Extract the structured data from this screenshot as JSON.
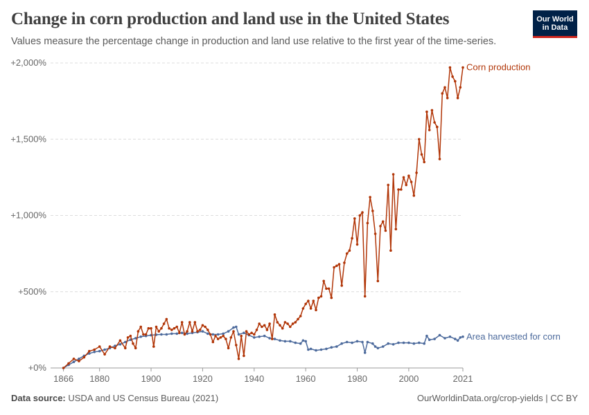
{
  "header": {
    "title": "Change in corn production and land use in the United States",
    "subtitle": "Values measure the percentage change in production and land use relative to the first year of the time-series.",
    "logo_line1": "Our World",
    "logo_line2": "in Data"
  },
  "footer": {
    "source_label": "Data source:",
    "source_text": "USDA and US Census Bureau (2021)",
    "url": "OurWorldinData.org/crop-yields | CC BY"
  },
  "chart_data": {
    "type": "line",
    "title": "Change in corn production and land use in the United States",
    "xlabel": "",
    "ylabel": "",
    "xlim": [
      1861,
      2021
    ],
    "ylim": [
      0,
      2000
    ],
    "y_ticks": [
      {
        "value": 0,
        "label": "+0%"
      },
      {
        "value": 500,
        "label": "+500%"
      },
      {
        "value": 1000,
        "label": "+1,000%"
      },
      {
        "value": 1500,
        "label": "+1,500%"
      },
      {
        "value": 2000,
        "label": "+2,000%"
      }
    ],
    "x_ticks": [
      {
        "value": 1866,
        "label": "1866"
      },
      {
        "value": 1880,
        "label": "1880"
      },
      {
        "value": 1900,
        "label": "1900"
      },
      {
        "value": 1920,
        "label": "1920"
      },
      {
        "value": 1940,
        "label": "1940"
      },
      {
        "value": 1960,
        "label": "1960"
      },
      {
        "value": 1980,
        "label": "1980"
      },
      {
        "value": 2000,
        "label": "2000"
      },
      {
        "value": 2021,
        "label": "2021"
      }
    ],
    "grid": "horizontal dashed",
    "legend": "inline labels at line ends (right)",
    "colors": {
      "production": "#b13507",
      "area": "#4c6a9c"
    },
    "series": [
      {
        "name": "Corn production",
        "color": "#b13507",
        "points": [
          [
            1866,
            0
          ],
          [
            1868,
            30
          ],
          [
            1870,
            60
          ],
          [
            1872,
            45
          ],
          [
            1874,
            70
          ],
          [
            1876,
            110
          ],
          [
            1878,
            120
          ],
          [
            1880,
            140
          ],
          [
            1882,
            90
          ],
          [
            1884,
            140
          ],
          [
            1886,
            130
          ],
          [
            1888,
            180
          ],
          [
            1890,
            130
          ],
          [
            1891,
            200
          ],
          [
            1892,
            210
          ],
          [
            1893,
            160
          ],
          [
            1894,
            130
          ],
          [
            1895,
            240
          ],
          [
            1896,
            270
          ],
          [
            1897,
            220
          ],
          [
            1898,
            220
          ],
          [
            1899,
            260
          ],
          [
            1900,
            260
          ],
          [
            1901,
            140
          ],
          [
            1902,
            270
          ],
          [
            1903,
            240
          ],
          [
            1904,
            260
          ],
          [
            1905,
            290
          ],
          [
            1906,
            320
          ],
          [
            1907,
            260
          ],
          [
            1908,
            250
          ],
          [
            1909,
            260
          ],
          [
            1910,
            270
          ],
          [
            1911,
            230
          ],
          [
            1912,
            300
          ],
          [
            1913,
            220
          ],
          [
            1914,
            240
          ],
          [
            1915,
            300
          ],
          [
            1916,
            240
          ],
          [
            1917,
            300
          ],
          [
            1918,
            240
          ],
          [
            1919,
            250
          ],
          [
            1920,
            280
          ],
          [
            1921,
            270
          ],
          [
            1922,
            250
          ],
          [
            1923,
            220
          ],
          [
            1924,
            170
          ],
          [
            1925,
            210
          ],
          [
            1926,
            190
          ],
          [
            1927,
            200
          ],
          [
            1928,
            210
          ],
          [
            1929,
            190
          ],
          [
            1930,
            130
          ],
          [
            1931,
            200
          ],
          [
            1932,
            240
          ],
          [
            1933,
            150
          ],
          [
            1934,
            60
          ],
          [
            1935,
            210
          ],
          [
            1936,
            80
          ],
          [
            1937,
            240
          ],
          [
            1938,
            220
          ],
          [
            1939,
            230
          ],
          [
            1940,
            220
          ],
          [
            1941,
            250
          ],
          [
            1942,
            290
          ],
          [
            1943,
            270
          ],
          [
            1944,
            280
          ],
          [
            1945,
            250
          ],
          [
            1946,
            290
          ],
          [
            1947,
            190
          ],
          [
            1948,
            350
          ],
          [
            1949,
            300
          ],
          [
            1950,
            280
          ],
          [
            1951,
            260
          ],
          [
            1952,
            300
          ],
          [
            1953,
            290
          ],
          [
            1954,
            270
          ],
          [
            1955,
            290
          ],
          [
            1956,
            300
          ],
          [
            1957,
            320
          ],
          [
            1958,
            340
          ],
          [
            1959,
            390
          ],
          [
            1960,
            420
          ],
          [
            1961,
            440
          ],
          [
            1962,
            390
          ],
          [
            1963,
            440
          ],
          [
            1964,
            380
          ],
          [
            1965,
            460
          ],
          [
            1966,
            470
          ],
          [
            1967,
            570
          ],
          [
            1968,
            520
          ],
          [
            1969,
            520
          ],
          [
            1970,
            460
          ],
          [
            1971,
            660
          ],
          [
            1972,
            670
          ],
          [
            1973,
            680
          ],
          [
            1974,
            540
          ],
          [
            1975,
            690
          ],
          [
            1976,
            750
          ],
          [
            1977,
            770
          ],
          [
            1978,
            850
          ],
          [
            1979,
            980
          ],
          [
            1980,
            810
          ],
          [
            1981,
            1000
          ],
          [
            1982,
            1020
          ],
          [
            1983,
            470
          ],
          [
            1984,
            950
          ],
          [
            1985,
            1120
          ],
          [
            1986,
            1030
          ],
          [
            1987,
            880
          ],
          [
            1988,
            570
          ],
          [
            1989,
            930
          ],
          [
            1990,
            960
          ],
          [
            1991,
            900
          ],
          [
            1992,
            1200
          ],
          [
            1993,
            770
          ],
          [
            1994,
            1270
          ],
          [
            1995,
            910
          ],
          [
            1996,
            1170
          ],
          [
            1997,
            1170
          ],
          [
            1998,
            1250
          ],
          [
            1999,
            1200
          ],
          [
            2000,
            1260
          ],
          [
            2001,
            1220
          ],
          [
            2002,
            1130
          ],
          [
            2003,
            1280
          ],
          [
            2004,
            1500
          ],
          [
            2005,
            1400
          ],
          [
            2006,
            1350
          ],
          [
            2007,
            1680
          ],
          [
            2008,
            1560
          ],
          [
            2009,
            1690
          ],
          [
            2010,
            1610
          ],
          [
            2011,
            1580
          ],
          [
            2012,
            1370
          ],
          [
            2013,
            1800
          ],
          [
            2014,
            1840
          ],
          [
            2015,
            1770
          ],
          [
            2016,
            1970
          ],
          [
            2017,
            1910
          ],
          [
            2018,
            1880
          ],
          [
            2019,
            1770
          ],
          [
            2020,
            1840
          ],
          [
            2021,
            1970
          ]
        ]
      },
      {
        "name": "Area harvested for corn",
        "color": "#4c6a9c",
        "points": [
          [
            1866,
            0
          ],
          [
            1868,
            20
          ],
          [
            1870,
            40
          ],
          [
            1872,
            60
          ],
          [
            1874,
            80
          ],
          [
            1876,
            95
          ],
          [
            1878,
            105
          ],
          [
            1880,
            110
          ],
          [
            1882,
            120
          ],
          [
            1884,
            130
          ],
          [
            1886,
            145
          ],
          [
            1888,
            155
          ],
          [
            1890,
            170
          ],
          [
            1892,
            185
          ],
          [
            1894,
            195
          ],
          [
            1896,
            205
          ],
          [
            1898,
            210
          ],
          [
            1900,
            215
          ],
          [
            1902,
            218
          ],
          [
            1904,
            220
          ],
          [
            1906,
            220
          ],
          [
            1908,
            225
          ],
          [
            1910,
            225
          ],
          [
            1912,
            230
          ],
          [
            1914,
            225
          ],
          [
            1916,
            230
          ],
          [
            1918,
            235
          ],
          [
            1920,
            240
          ],
          [
            1922,
            225
          ],
          [
            1924,
            220
          ],
          [
            1926,
            220
          ],
          [
            1928,
            225
          ],
          [
            1930,
            240
          ],
          [
            1932,
            265
          ],
          [
            1933,
            270
          ],
          [
            1934,
            220
          ],
          [
            1936,
            230
          ],
          [
            1938,
            215
          ],
          [
            1940,
            200
          ],
          [
            1942,
            205
          ],
          [
            1944,
            210
          ],
          [
            1946,
            195
          ],
          [
            1948,
            190
          ],
          [
            1950,
            180
          ],
          [
            1952,
            175
          ],
          [
            1954,
            175
          ],
          [
            1956,
            165
          ],
          [
            1958,
            160
          ],
          [
            1959,
            180
          ],
          [
            1960,
            175
          ],
          [
            1961,
            120
          ],
          [
            1962,
            125
          ],
          [
            1964,
            115
          ],
          [
            1966,
            120
          ],
          [
            1968,
            125
          ],
          [
            1970,
            135
          ],
          [
            1972,
            140
          ],
          [
            1974,
            160
          ],
          [
            1976,
            170
          ],
          [
            1978,
            165
          ],
          [
            1980,
            175
          ],
          [
            1982,
            170
          ],
          [
            1983,
            100
          ],
          [
            1984,
            170
          ],
          [
            1986,
            160
          ],
          [
            1987,
            140
          ],
          [
            1988,
            130
          ],
          [
            1990,
            140
          ],
          [
            1992,
            160
          ],
          [
            1994,
            155
          ],
          [
            1996,
            165
          ],
          [
            1998,
            165
          ],
          [
            2000,
            165
          ],
          [
            2002,
            160
          ],
          [
            2004,
            165
          ],
          [
            2006,
            160
          ],
          [
            2007,
            210
          ],
          [
            2008,
            185
          ],
          [
            2010,
            190
          ],
          [
            2012,
            215
          ],
          [
            2014,
            195
          ],
          [
            2016,
            205
          ],
          [
            2018,
            190
          ],
          [
            2019,
            180
          ],
          [
            2020,
            200
          ],
          [
            2021,
            205
          ]
        ]
      }
    ]
  }
}
